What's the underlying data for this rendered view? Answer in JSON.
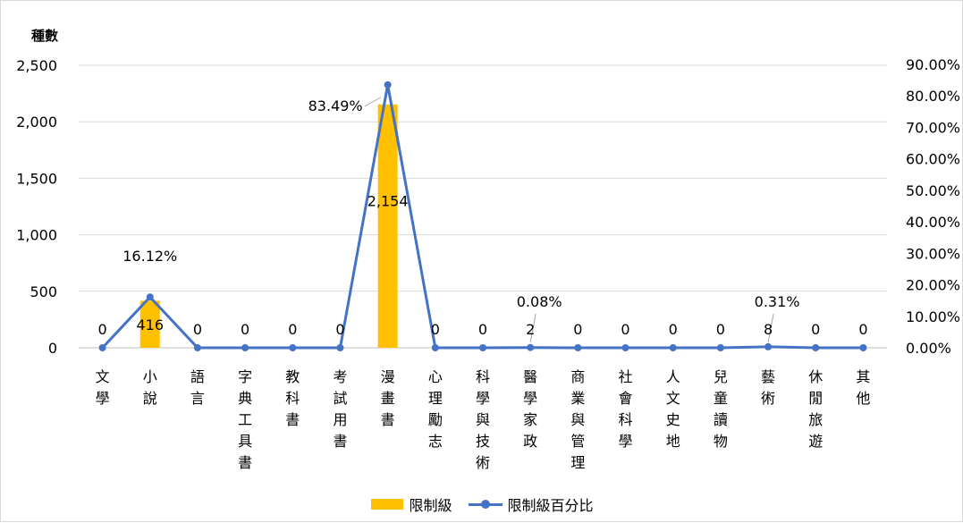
{
  "chart_data": {
    "type": "bar",
    "ylabel": "種數",
    "categories": [
      "文學",
      "小說",
      "語言",
      "字典工具書",
      "教科書",
      "考試用書",
      "漫畫書",
      "心理勵志",
      "科學與技術",
      "醫學家政",
      "商業與管理",
      "社會科學",
      "人文史地",
      "兒童讀物",
      "藝術",
      "休閒旅遊",
      "其他"
    ],
    "series": [
      {
        "name": "限制級",
        "type": "bar",
        "axis": "left",
        "color": "#FFC000",
        "values": [
          0,
          416,
          0,
          0,
          0,
          0,
          2154,
          0,
          0,
          2,
          0,
          0,
          0,
          0,
          8,
          0,
          0
        ],
        "labels": [
          "0",
          "416",
          "0",
          "0",
          "0",
          "0",
          "2,154",
          "0",
          "0",
          "2",
          "0",
          "0",
          "0",
          "0",
          "8",
          "0",
          "0"
        ]
      },
      {
        "name": "限制級百分比",
        "type": "line",
        "axis": "right",
        "color": "#4472C4",
        "values": [
          0,
          16.12,
          0,
          0,
          0,
          0,
          83.49,
          0,
          0,
          0.08,
          0,
          0,
          0,
          0,
          0.31,
          0,
          0
        ],
        "labels": [
          "16.12%",
          "83.49%",
          "0.08%",
          "0.31%"
        ]
      }
    ],
    "y_left": {
      "min": 0,
      "max": 2500,
      "ticks": [
        "0",
        "500",
        "1,000",
        "1,500",
        "2,000",
        "2,500"
      ]
    },
    "y_right": {
      "min": 0,
      "max": 90,
      "ticks": [
        "0.00%",
        "10.00%",
        "20.00%",
        "30.00%",
        "40.00%",
        "50.00%",
        "60.00%",
        "70.00%",
        "80.00%",
        "90.00%"
      ]
    },
    "grid": true,
    "legend": "bottom"
  }
}
